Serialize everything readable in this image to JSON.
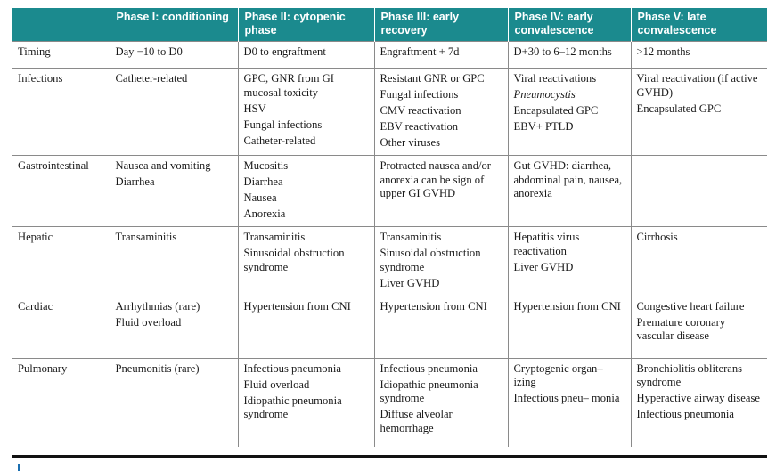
{
  "header": [
    "",
    "Phase I: conditioning",
    "Phase II: cytopenic phase",
    "Phase III: early recovery",
    "Phase IV: early convalescence",
    "Phase V: late convalescence"
  ],
  "rows": [
    {
      "label": "Timing",
      "cells": [
        [
          "Day −10 to D0"
        ],
        [
          "D0 to engraftment"
        ],
        [
          "Engraftment + 7d"
        ],
        [
          "D+30 to 6–12 months"
        ],
        [
          ">12 months"
        ]
      ]
    },
    {
      "label": "Infections",
      "cells": [
        [
          "Catheter-related"
        ],
        [
          "GPC, GNR from GI mucosal toxicity",
          "HSV",
          "Fungal infections",
          "Catheter-related"
        ],
        [
          "Resistant GNR or GPC",
          "Fungal infections",
          "CMV reactivation",
          "EBV reactivation",
          "Other viruses"
        ],
        [
          "Viral reactivations",
          "Pneumocystis",
          "Encapsulated GPC",
          "EBV+ PTLD"
        ],
        [
          "Viral reactivation (if active GVHD)",
          "Encapsulated GPC"
        ]
      ]
    },
    {
      "label": "Gastrointestinal",
      "cells": [
        [
          "Nausea and vomiting",
          "Diarrhea"
        ],
        [
          "Mucositis",
          "Diarrhea",
          "Nausea",
          "Anorexia"
        ],
        [
          "Protracted nausea and/or anorexia can be sign of upper GI GVHD"
        ],
        [
          "Gut GVHD: diarrhea, abdominal pain, nausea, anorexia"
        ],
        []
      ]
    },
    {
      "label": "Hepatic",
      "cells": [
        [
          "Transaminitis"
        ],
        [
          "Transaminitis",
          "Sinusoidal obstruction syndrome"
        ],
        [
          "Transaminitis",
          "Sinusoidal obstruction syndrome",
          "Liver GVHD"
        ],
        [
          "Hepatitis virus reactivation",
          "Liver GVHD"
        ],
        [
          "Cirrhosis"
        ]
      ]
    },
    {
      "label": "Cardiac",
      "cells": [
        [
          "Arrhythmias (rare)",
          "Fluid overload"
        ],
        [
          "Hypertension from CNI"
        ],
        [
          "Hypertension from CNI"
        ],
        [
          "Hypertension from CNI"
        ],
        [
          "Congestive heart failure",
          "Premature coronary vascular disease"
        ]
      ]
    },
    {
      "label": "Pulmonary",
      "cells": [
        [
          "Pneumonitis (rare)"
        ],
        [
          "Infectious pneumonia",
          "Fluid overload",
          "Idiopathic pneumonia syndrome"
        ],
        [
          "Infectious pneumonia",
          "Idiopathic pneumonia syndrome",
          "Diffuse alveolar hemorrhage"
        ],
        [
          "Cryptogenic organ– izing",
          "Infectious pneu– monia"
        ],
        [
          "Bronchiolitis obliterans syndrome",
          "Hyperactive airway disease",
          "Infectious pneumonia"
        ]
      ]
    }
  ],
  "italic_items": [
    "Pneumocystis"
  ],
  "colors": {
    "header_bg": "#1b8a8e",
    "header_text": "#ffffff",
    "grid": "#8a8a8a"
  }
}
